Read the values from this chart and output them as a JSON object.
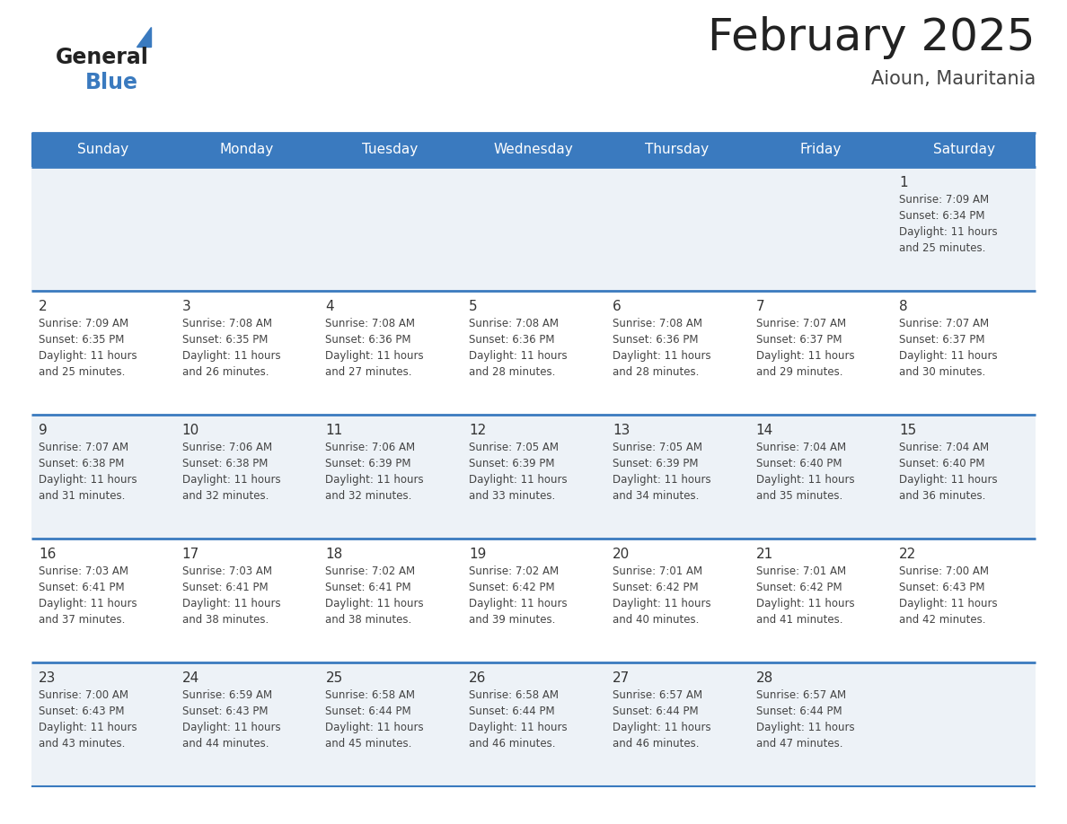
{
  "title": "February 2025",
  "subtitle": "Aioun, Mauritania",
  "days_of_week": [
    "Sunday",
    "Monday",
    "Tuesday",
    "Wednesday",
    "Thursday",
    "Friday",
    "Saturday"
  ],
  "header_bg": "#3a7abf",
  "header_text": "#ffffff",
  "cell_bg_odd": "#edf2f7",
  "cell_bg_even": "#ffffff",
  "divider_color": "#3a7abf",
  "day_num_color": "#333333",
  "text_color": "#444444",
  "title_color": "#222222",
  "subtitle_color": "#444444",
  "logo_text_color": "#222222",
  "logo_blue_color": "#3a7abf",
  "calendar_data": [
    [
      null,
      null,
      null,
      null,
      null,
      null,
      {
        "day": 1,
        "sunrise": "7:09 AM",
        "sunset": "6:34 PM",
        "daylight": "11 hours and 25 minutes."
      }
    ],
    [
      {
        "day": 2,
        "sunrise": "7:09 AM",
        "sunset": "6:35 PM",
        "daylight": "11 hours and 25 minutes."
      },
      {
        "day": 3,
        "sunrise": "7:08 AM",
        "sunset": "6:35 PM",
        "daylight": "11 hours and 26 minutes."
      },
      {
        "day": 4,
        "sunrise": "7:08 AM",
        "sunset": "6:36 PM",
        "daylight": "11 hours and 27 minutes."
      },
      {
        "day": 5,
        "sunrise": "7:08 AM",
        "sunset": "6:36 PM",
        "daylight": "11 hours and 28 minutes."
      },
      {
        "day": 6,
        "sunrise": "7:08 AM",
        "sunset": "6:36 PM",
        "daylight": "11 hours and 28 minutes."
      },
      {
        "day": 7,
        "sunrise": "7:07 AM",
        "sunset": "6:37 PM",
        "daylight": "11 hours and 29 minutes."
      },
      {
        "day": 8,
        "sunrise": "7:07 AM",
        "sunset": "6:37 PM",
        "daylight": "11 hours and 30 minutes."
      }
    ],
    [
      {
        "day": 9,
        "sunrise": "7:07 AM",
        "sunset": "6:38 PM",
        "daylight": "11 hours and 31 minutes."
      },
      {
        "day": 10,
        "sunrise": "7:06 AM",
        "sunset": "6:38 PM",
        "daylight": "11 hours and 32 minutes."
      },
      {
        "day": 11,
        "sunrise": "7:06 AM",
        "sunset": "6:39 PM",
        "daylight": "11 hours and 32 minutes."
      },
      {
        "day": 12,
        "sunrise": "7:05 AM",
        "sunset": "6:39 PM",
        "daylight": "11 hours and 33 minutes."
      },
      {
        "day": 13,
        "sunrise": "7:05 AM",
        "sunset": "6:39 PM",
        "daylight": "11 hours and 34 minutes."
      },
      {
        "day": 14,
        "sunrise": "7:04 AM",
        "sunset": "6:40 PM",
        "daylight": "11 hours and 35 minutes."
      },
      {
        "day": 15,
        "sunrise": "7:04 AM",
        "sunset": "6:40 PM",
        "daylight": "11 hours and 36 minutes."
      }
    ],
    [
      {
        "day": 16,
        "sunrise": "7:03 AM",
        "sunset": "6:41 PM",
        "daylight": "11 hours and 37 minutes."
      },
      {
        "day": 17,
        "sunrise": "7:03 AM",
        "sunset": "6:41 PM",
        "daylight": "11 hours and 38 minutes."
      },
      {
        "day": 18,
        "sunrise": "7:02 AM",
        "sunset": "6:41 PM",
        "daylight": "11 hours and 38 minutes."
      },
      {
        "day": 19,
        "sunrise": "7:02 AM",
        "sunset": "6:42 PM",
        "daylight": "11 hours and 39 minutes."
      },
      {
        "day": 20,
        "sunrise": "7:01 AM",
        "sunset": "6:42 PM",
        "daylight": "11 hours and 40 minutes."
      },
      {
        "day": 21,
        "sunrise": "7:01 AM",
        "sunset": "6:42 PM",
        "daylight": "11 hours and 41 minutes."
      },
      {
        "day": 22,
        "sunrise": "7:00 AM",
        "sunset": "6:43 PM",
        "daylight": "11 hours and 42 minutes."
      }
    ],
    [
      {
        "day": 23,
        "sunrise": "7:00 AM",
        "sunset": "6:43 PM",
        "daylight": "11 hours and 43 minutes."
      },
      {
        "day": 24,
        "sunrise": "6:59 AM",
        "sunset": "6:43 PM",
        "daylight": "11 hours and 44 minutes."
      },
      {
        "day": 25,
        "sunrise": "6:58 AM",
        "sunset": "6:44 PM",
        "daylight": "11 hours and 45 minutes."
      },
      {
        "day": 26,
        "sunrise": "6:58 AM",
        "sunset": "6:44 PM",
        "daylight": "11 hours and 46 minutes."
      },
      {
        "day": 27,
        "sunrise": "6:57 AM",
        "sunset": "6:44 PM",
        "daylight": "11 hours and 46 minutes."
      },
      {
        "day": 28,
        "sunrise": "6:57 AM",
        "sunset": "6:44 PM",
        "daylight": "11 hours and 47 minutes."
      },
      null
    ]
  ]
}
